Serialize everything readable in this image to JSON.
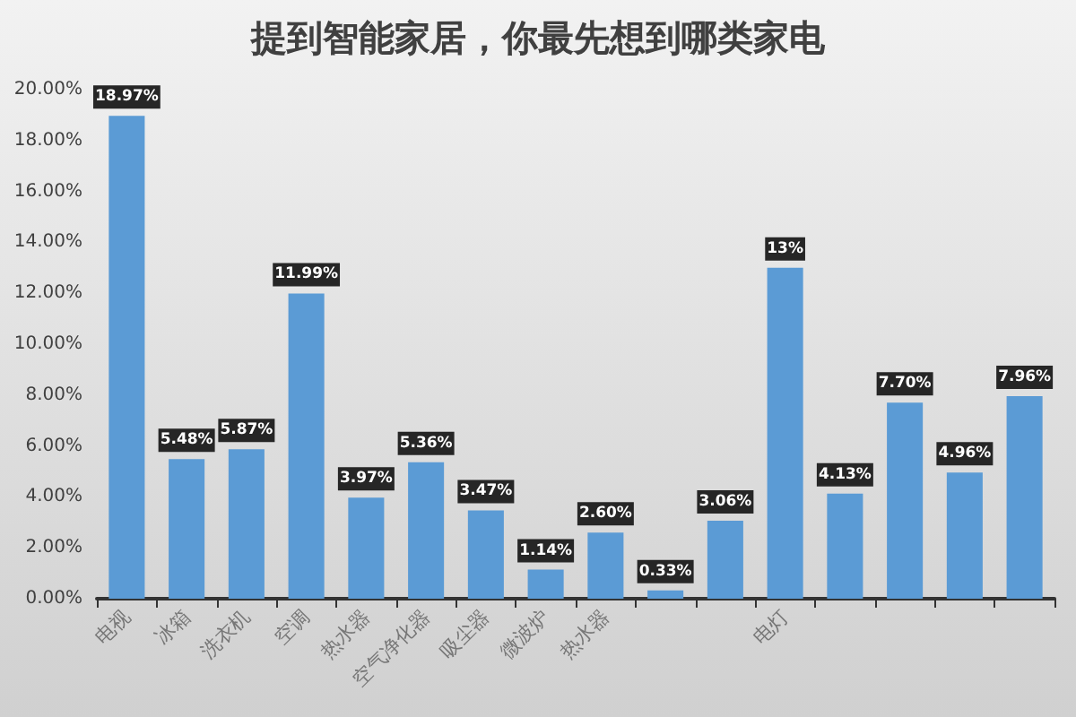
{
  "chart_data": {
    "type": "bar",
    "title": "提到智能家居，你最先想到哪类家电",
    "categories": [
      "电视",
      "冰箱",
      "洗衣机",
      "空调",
      "热水器",
      "空气净化器",
      "吸尘器",
      "微波炉",
      "热水器",
      null,
      null,
      "电灯",
      null,
      null,
      null,
      null
    ],
    "values": [
      18.97,
      5.48,
      5.87,
      11.99,
      3.97,
      5.36,
      3.47,
      1.14,
      2.6,
      0.33,
      3.06,
      13,
      4.13,
      7.7,
      4.96,
      7.96
    ],
    "value_labels": [
      "18.97%",
      "5.48%",
      "5.87%",
      "11.99%",
      "3.97%",
      "5.36%",
      "3.47%",
      "1.14%",
      "2.60%",
      "0.33%",
      "3.06%",
      "13%",
      "4.13%",
      "7.70%",
      "4.96%",
      "7.96%"
    ],
    "color": "#5b9bd5",
    "ylim": [
      0,
      20
    ],
    "yticks": [
      {
        "value": 0,
        "label": "0.00%"
      },
      {
        "value": 2,
        "label": "2.00%"
      },
      {
        "value": 4,
        "label": "4.00%"
      },
      {
        "value": 6,
        "label": "6.00%"
      },
      {
        "value": 8,
        "label": "8.00%"
      },
      {
        "value": 10,
        "label": "10.00%"
      },
      {
        "value": 12,
        "label": "12.00%"
      },
      {
        "value": 14,
        "label": "14.00%"
      },
      {
        "value": 16,
        "label": "16.00%"
      },
      {
        "value": 18,
        "label": "18.00%"
      },
      {
        "value": 20,
        "label": "20.00%"
      }
    ],
    "grid": false
  }
}
